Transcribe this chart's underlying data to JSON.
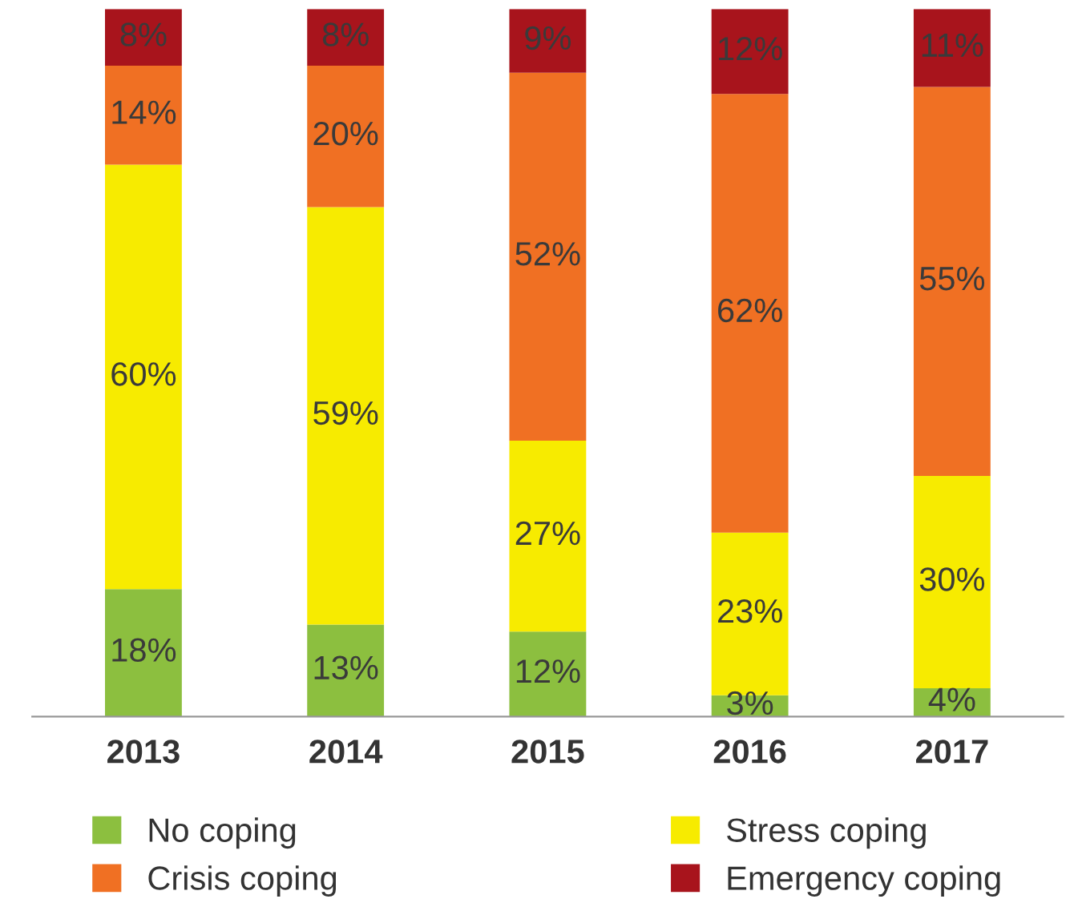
{
  "chart_data": {
    "type": "bar",
    "stacked": true,
    "categories": [
      "2013",
      "2014",
      "2015",
      "2016",
      "2017"
    ],
    "series": [
      {
        "name": "No coping",
        "color": "#8cbf3f",
        "values": [
          18,
          13,
          12,
          3,
          4
        ],
        "value_labels": [
          "18%",
          "13%",
          "12%",
          "3%",
          "4%"
        ]
      },
      {
        "name": "Stress coping",
        "color": "#f7eb00",
        "values": [
          60,
          59,
          27,
          23,
          30
        ],
        "value_labels": [
          "60%",
          "59%",
          "27%",
          "23%",
          "30%"
        ]
      },
      {
        "name": "Crisis coping",
        "color": "#f07023",
        "values": [
          14,
          20,
          52,
          62,
          55
        ],
        "value_labels": [
          "14%",
          "20%",
          "52%",
          "62%",
          "55%"
        ]
      },
      {
        "name": "Emergency coping",
        "color": "#a8141c",
        "values": [
          8,
          8,
          9,
          12,
          11
        ],
        "value_labels": [
          "8%",
          "8%",
          "9%",
          "12%",
          "11%"
        ]
      }
    ],
    "legend": "bottom",
    "grid": false,
    "tick_labels": "x"
  }
}
